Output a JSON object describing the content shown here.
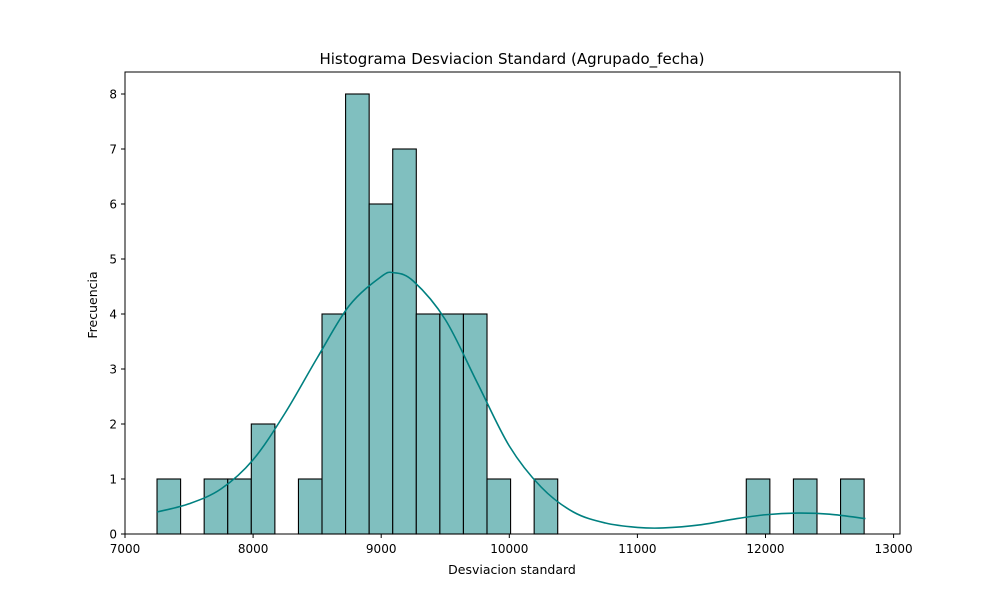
{
  "chart_data": {
    "type": "bar",
    "title": "Histograma Desviacion Standard (Agrupado_fecha)",
    "xlabel": "Desviacion standard",
    "ylabel": "Frecuencia",
    "xlim": [
      7000,
      13050
    ],
    "ylim": [
      0,
      8.4
    ],
    "xticks": [
      7000,
      8000,
      9000,
      10000,
      11000,
      12000,
      13000
    ],
    "yticks": [
      0,
      1,
      2,
      3,
      4,
      5,
      6,
      7,
      8
    ],
    "grid": false,
    "colors": {
      "bar_fill": "#80bfbf",
      "bar_edge": "#000000",
      "kde_line": "#008080"
    },
    "bins": [
      {
        "x0": 7250,
        "x1": 7434,
        "count": 1
      },
      {
        "x0": 7434,
        "x1": 7618,
        "count": 0
      },
      {
        "x0": 7618,
        "x1": 7802,
        "count": 1
      },
      {
        "x0": 7802,
        "x1": 7986,
        "count": 1
      },
      {
        "x0": 7986,
        "x1": 8170,
        "count": 2
      },
      {
        "x0": 8170,
        "x1": 8354,
        "count": 0
      },
      {
        "x0": 8354,
        "x1": 8538,
        "count": 1
      },
      {
        "x0": 8538,
        "x1": 8722,
        "count": 4
      },
      {
        "x0": 8722,
        "x1": 8906,
        "count": 8
      },
      {
        "x0": 8906,
        "x1": 9090,
        "count": 6
      },
      {
        "x0": 9090,
        "x1": 9274,
        "count": 7
      },
      {
        "x0": 9274,
        "x1": 9458,
        "count": 4
      },
      {
        "x0": 9458,
        "x1": 9642,
        "count": 4
      },
      {
        "x0": 9642,
        "x1": 9826,
        "count": 4
      },
      {
        "x0": 9826,
        "x1": 10010,
        "count": 1
      },
      {
        "x0": 10010,
        "x1": 10194,
        "count": 0
      },
      {
        "x0": 10194,
        "x1": 10378,
        "count": 1
      },
      {
        "x0": 11850,
        "x1": 12034,
        "count": 1
      },
      {
        "x0": 12218,
        "x1": 12402,
        "count": 1
      },
      {
        "x0": 12586,
        "x1": 12770,
        "count": 1
      }
    ],
    "kde": {
      "x": [
        7250,
        7500,
        7750,
        8000,
        8250,
        8500,
        8750,
        9000,
        9100,
        9250,
        9500,
        9750,
        10000,
        10250,
        10500,
        10750,
        11000,
        11200,
        11500,
        11750,
        12000,
        12250,
        12500,
        12780
      ],
      "y": [
        0.4,
        0.55,
        0.82,
        1.35,
        2.2,
        3.2,
        4.15,
        4.68,
        4.75,
        4.6,
        3.9,
        2.75,
        1.6,
        0.85,
        0.4,
        0.2,
        0.12,
        0.11,
        0.17,
        0.27,
        0.35,
        0.38,
        0.36,
        0.28
      ]
    }
  }
}
